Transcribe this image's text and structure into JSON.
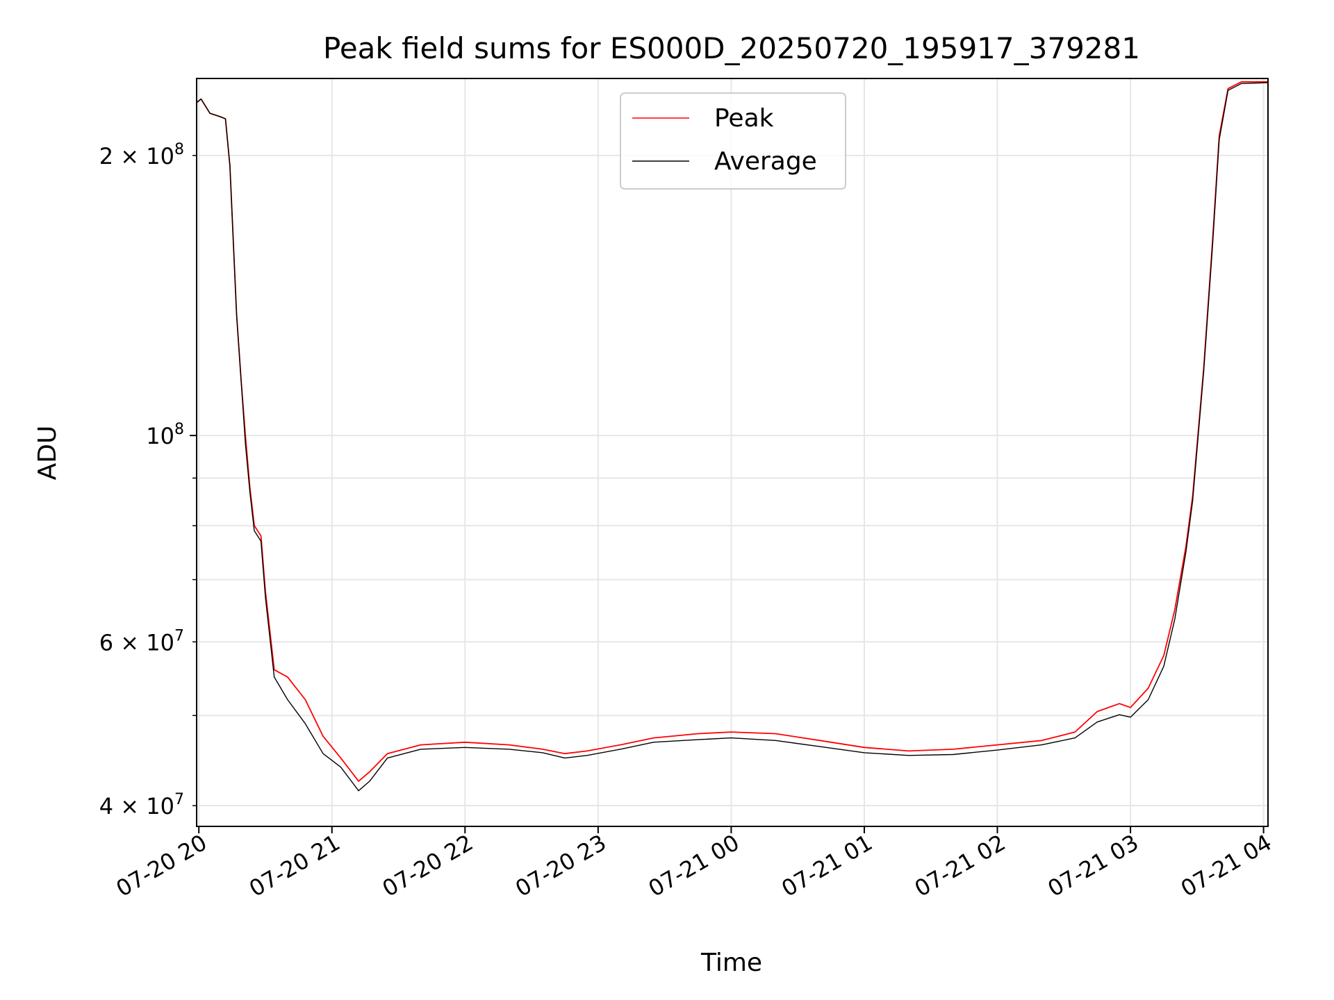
{
  "chart_data": {
    "type": "line",
    "title": "Peak field sums for ES000D_20250720_195917_379281",
    "xlabel": "Time",
    "ylabel": "ADU",
    "x_range": [
      "2025-07-20 19:59",
      "2025-07-21 04:02"
    ],
    "ylim": [
      38000000,
      242000000
    ],
    "y_scale": "log",
    "grid": true,
    "legend_position": "upper-center",
    "x_ticks": [
      {
        "value": "2025-07-20 20:00",
        "label": "07-20 20"
      },
      {
        "value": "2025-07-20 21:00",
        "label": "07-20 21"
      },
      {
        "value": "2025-07-20 22:00",
        "label": "07-20 22"
      },
      {
        "value": "2025-07-20 23:00",
        "label": "07-20 23"
      },
      {
        "value": "2025-07-21 00:00",
        "label": "07-21 00"
      },
      {
        "value": "2025-07-21 01:00",
        "label": "07-21 01"
      },
      {
        "value": "2025-07-21 02:00",
        "label": "07-21 02"
      },
      {
        "value": "2025-07-21 03:00",
        "label": "07-21 03"
      },
      {
        "value": "2025-07-21 04:00",
        "label": "07-21 04"
      }
    ],
    "y_major_ticks": [
      {
        "value": 100000000,
        "base": "10",
        "exp": "8"
      }
    ],
    "y_minor_ticks": [
      {
        "value": 40000000,
        "mant": "4",
        "exp": "7"
      },
      {
        "value": 60000000,
        "mant": "6",
        "exp": "7"
      },
      {
        "value": 200000000,
        "mant": "2",
        "exp": "8"
      }
    ],
    "y_minor_unlabeled": [
      50000000,
      70000000,
      80000000,
      90000000
    ],
    "series": [
      {
        "name": "Peak",
        "color": "#ff0000",
        "points": [
          [
            "2025-07-20 19:59",
            228000000
          ],
          [
            "2025-07-20 20:01",
            230000000
          ],
          [
            "2025-07-20 20:05",
            222000000
          ],
          [
            "2025-07-20 20:10",
            220000000
          ],
          [
            "2025-07-20 20:12",
            219000000
          ],
          [
            "2025-07-20 20:14",
            195000000
          ],
          [
            "2025-07-20 20:17",
            135000000
          ],
          [
            "2025-07-20 20:19",
            115000000
          ],
          [
            "2025-07-20 20:21",
            100000000
          ],
          [
            "2025-07-20 20:23",
            88000000
          ],
          [
            "2025-07-20 20:25",
            80000000
          ],
          [
            "2025-07-20 20:28",
            78000000
          ],
          [
            "2025-07-20 20:30",
            68000000
          ],
          [
            "2025-07-20 20:34",
            56000000
          ],
          [
            "2025-07-20 20:40",
            55000000
          ],
          [
            "2025-07-20 20:48",
            52000000
          ],
          [
            "2025-07-20 20:56",
            47500000
          ],
          [
            "2025-07-20 21:04",
            45000000
          ],
          [
            "2025-07-20 21:12",
            42500000
          ],
          [
            "2025-07-20 21:17",
            43500000
          ],
          [
            "2025-07-20 21:25",
            45500000
          ],
          [
            "2025-07-20 21:40",
            46500000
          ],
          [
            "2025-07-20 22:00",
            46800000
          ],
          [
            "2025-07-20 22:20",
            46500000
          ],
          [
            "2025-07-20 22:35",
            46000000
          ],
          [
            "2025-07-20 22:45",
            45500000
          ],
          [
            "2025-07-20 22:55",
            45800000
          ],
          [
            "2025-07-20 23:10",
            46500000
          ],
          [
            "2025-07-20 23:25",
            47300000
          ],
          [
            "2025-07-20 23:45",
            47800000
          ],
          [
            "2025-07-21 00:00",
            48000000
          ],
          [
            "2025-07-21 00:20",
            47800000
          ],
          [
            "2025-07-21 00:40",
            47000000
          ],
          [
            "2025-07-21 01:00",
            46200000
          ],
          [
            "2025-07-21 01:20",
            45800000
          ],
          [
            "2025-07-21 01:40",
            46000000
          ],
          [
            "2025-07-21 02:00",
            46500000
          ],
          [
            "2025-07-21 02:20",
            47000000
          ],
          [
            "2025-07-21 02:35",
            48000000
          ],
          [
            "2025-07-21 02:45",
            50500000
          ],
          [
            "2025-07-21 02:55",
            51500000
          ],
          [
            "2025-07-21 03:00",
            51000000
          ],
          [
            "2025-07-21 03:08",
            53500000
          ],
          [
            "2025-07-21 03:15",
            58000000
          ],
          [
            "2025-07-21 03:20",
            65000000
          ],
          [
            "2025-07-21 03:25",
            76000000
          ],
          [
            "2025-07-21 03:28",
            86000000
          ],
          [
            "2025-07-21 03:33",
            118000000
          ],
          [
            "2025-07-21 03:37",
            162000000
          ],
          [
            "2025-07-21 03:40",
            210000000
          ],
          [
            "2025-07-21 03:44",
            236000000
          ],
          [
            "2025-07-21 03:50",
            240000000
          ],
          [
            "2025-07-21 04:02",
            240000000
          ]
        ]
      },
      {
        "name": "Average",
        "color": "#000000",
        "points": [
          [
            "2025-07-20 19:59",
            228000000
          ],
          [
            "2025-07-20 20:01",
            230000000
          ],
          [
            "2025-07-20 20:05",
            222000000
          ],
          [
            "2025-07-20 20:10",
            220000000
          ],
          [
            "2025-07-20 20:12",
            219000000
          ],
          [
            "2025-07-20 20:14",
            195000000
          ],
          [
            "2025-07-20 20:17",
            135000000
          ],
          [
            "2025-07-20 20:19",
            115000000
          ],
          [
            "2025-07-20 20:21",
            98000000
          ],
          [
            "2025-07-20 20:23",
            87000000
          ],
          [
            "2025-07-20 20:25",
            79000000
          ],
          [
            "2025-07-20 20:28",
            77000000
          ],
          [
            "2025-07-20 20:30",
            67000000
          ],
          [
            "2025-07-20 20:34",
            55000000
          ],
          [
            "2025-07-20 20:40",
            52000000
          ],
          [
            "2025-07-20 20:48",
            49000000
          ],
          [
            "2025-07-20 20:56",
            45500000
          ],
          [
            "2025-07-20 21:04",
            44000000
          ],
          [
            "2025-07-20 21:12",
            41500000
          ],
          [
            "2025-07-20 21:17",
            42500000
          ],
          [
            "2025-07-20 21:25",
            45000000
          ],
          [
            "2025-07-20 21:40",
            46000000
          ],
          [
            "2025-07-20 22:00",
            46200000
          ],
          [
            "2025-07-20 22:20",
            46000000
          ],
          [
            "2025-07-20 22:35",
            45600000
          ],
          [
            "2025-07-20 22:45",
            45000000
          ],
          [
            "2025-07-20 22:55",
            45300000
          ],
          [
            "2025-07-20 23:10",
            46000000
          ],
          [
            "2025-07-20 23:25",
            46800000
          ],
          [
            "2025-07-20 23:45",
            47100000
          ],
          [
            "2025-07-21 00:00",
            47300000
          ],
          [
            "2025-07-21 00:20",
            47000000
          ],
          [
            "2025-07-21 00:40",
            46300000
          ],
          [
            "2025-07-21 01:00",
            45600000
          ],
          [
            "2025-07-21 01:20",
            45300000
          ],
          [
            "2025-07-21 01:40",
            45400000
          ],
          [
            "2025-07-21 02:00",
            45900000
          ],
          [
            "2025-07-21 02:20",
            46500000
          ],
          [
            "2025-07-21 02:35",
            47300000
          ],
          [
            "2025-07-21 02:45",
            49200000
          ],
          [
            "2025-07-21 02:55",
            50100000
          ],
          [
            "2025-07-21 03:00",
            49800000
          ],
          [
            "2025-07-21 03:08",
            52000000
          ],
          [
            "2025-07-21 03:15",
            56500000
          ],
          [
            "2025-07-21 03:20",
            63500000
          ],
          [
            "2025-07-21 03:25",
            75000000
          ],
          [
            "2025-07-21 03:28",
            85000000
          ],
          [
            "2025-07-21 03:33",
            117000000
          ],
          [
            "2025-07-21 03:37",
            160000000
          ],
          [
            "2025-07-21 03:40",
            208000000
          ],
          [
            "2025-07-21 03:44",
            235000000
          ],
          [
            "2025-07-21 03:50",
            239000000
          ],
          [
            "2025-07-21 04:02",
            239500000
          ]
        ]
      }
    ]
  }
}
